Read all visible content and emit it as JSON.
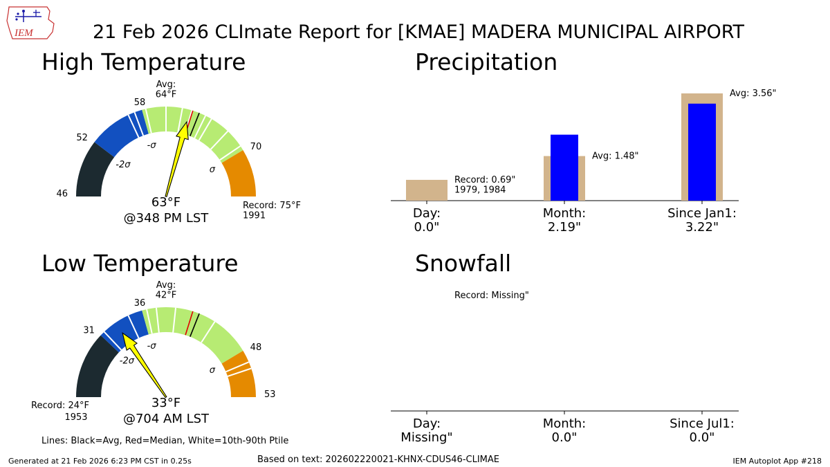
{
  "header": {
    "title": "21 Feb 2026 CLImate Report for [KMAE] MADERA MUNICIPAL AIRPORT",
    "logo_text": "IEM"
  },
  "footer": {
    "generated": "Generated at 21 Feb 2026 6:23 PM CST in 0.25s",
    "based_on": "Based on text: 202602220021-KHNX-CDUS46-CLIMAE",
    "app": "IEM Autoplot App #218",
    "lines_note": "Lines: Black=Avg, Red=Median, White=10th-90th Ptile"
  },
  "colors": {
    "below_2sigma": "#1c2a30",
    "sigma_band": "#1250c0",
    "normal": "#b7eb73",
    "above": "#e58a00",
    "needle": "#ffff00",
    "precip_avg": "#d2b48c",
    "precip_obs": "#0000ff"
  },
  "chart_data": [
    {
      "type": "gauge",
      "title": "High Temperature",
      "range": [
        46,
        75
      ],
      "value": 63,
      "value_label": "63°F",
      "time_label": "@348 PM LST",
      "avg": 64,
      "avg_label": "Avg:\n64°F",
      "median": 63.3,
      "ptile_lines": [
        56.5,
        57.2,
        58.4,
        60.5,
        62.2,
        63.2,
        64.7,
        65.4,
        67.5,
        69.5
      ],
      "bands": [
        {
          "from": 46,
          "to": 52,
          "color": "#1c2a30"
        },
        {
          "from": 52,
          "to": 58,
          "color": "#1250c0"
        },
        {
          "from": 58,
          "to": 70,
          "color": "#b7eb73"
        },
        {
          "from": 70,
          "to": 75,
          "color": "#e58a00"
        }
      ],
      "ticks": [
        {
          "value": 46,
          "label": "46"
        },
        {
          "value": 52,
          "label": "52"
        },
        {
          "value": 58,
          "label": "58"
        },
        {
          "value": 70,
          "label": "70"
        }
      ],
      "sigma_labels": [
        {
          "value": 52,
          "label": "-2σ"
        },
        {
          "value": 58,
          "label": "-σ"
        },
        {
          "value": 70,
          "label": "σ"
        }
      ],
      "record_label": "Record: 75°F\n1991",
      "record_side": "right"
    },
    {
      "type": "gauge",
      "title": "Low Temperature",
      "range": [
        24,
        53
      ],
      "value": 33,
      "value_label": "33°F",
      "time_label": "@704 AM LST",
      "avg": 42,
      "avg_label": "Avg:\n42°F",
      "median": 41.3,
      "ptile_lines": [
        31.5,
        34.5,
        36.5,
        37.5,
        39.5,
        43.8,
        49.3,
        50.0
      ],
      "bands": [
        {
          "from": 24,
          "to": 31,
          "color": "#1c2a30"
        },
        {
          "from": 31,
          "to": 36,
          "color": "#1250c0"
        },
        {
          "from": 36,
          "to": 48,
          "color": "#b7eb73"
        },
        {
          "from": 48,
          "to": 53,
          "color": "#e58a00"
        }
      ],
      "ticks": [
        {
          "value": 31,
          "label": "31"
        },
        {
          "value": 36,
          "label": "36"
        },
        {
          "value": 48,
          "label": "48"
        },
        {
          "value": 53,
          "label": "53"
        }
      ],
      "sigma_labels": [
        {
          "value": 31,
          "label": "-2σ"
        },
        {
          "value": 36,
          "label": "-σ"
        },
        {
          "value": 48,
          "label": "σ"
        }
      ],
      "record_label": "Record: 24°F\n1953",
      "record_side": "left"
    },
    {
      "type": "bar",
      "title": "Precipitation",
      "ylim": [
        0,
        3.56
      ],
      "groups": [
        {
          "label": "Day:\n0.0\"",
          "avg_bar": 0.69,
          "obs": 0.0,
          "annot": "Record: 0.69\"\n1979, 1984"
        },
        {
          "label": "Month:\n2.19\"",
          "avg_bar": 1.48,
          "obs": 2.19,
          "annot": "Avg: 1.48\""
        },
        {
          "label": "Since Jan1:\n3.22\"",
          "avg_bar": 3.56,
          "obs": 3.22,
          "annot": "Avg: 3.56\""
        }
      ]
    },
    {
      "type": "bar",
      "title": "Snowfall",
      "ylim": [
        0,
        1
      ],
      "groups": [
        {
          "label": "Day:\nMissing\"",
          "avg_bar": null,
          "obs": null,
          "annot": "Record: Missing\""
        },
        {
          "label": "Month:\n0.0\"",
          "avg_bar": null,
          "obs": 0.0,
          "annot": ""
        },
        {
          "label": "Since Jul1:\n0.0\"",
          "avg_bar": null,
          "obs": 0.0,
          "annot": ""
        }
      ]
    }
  ]
}
